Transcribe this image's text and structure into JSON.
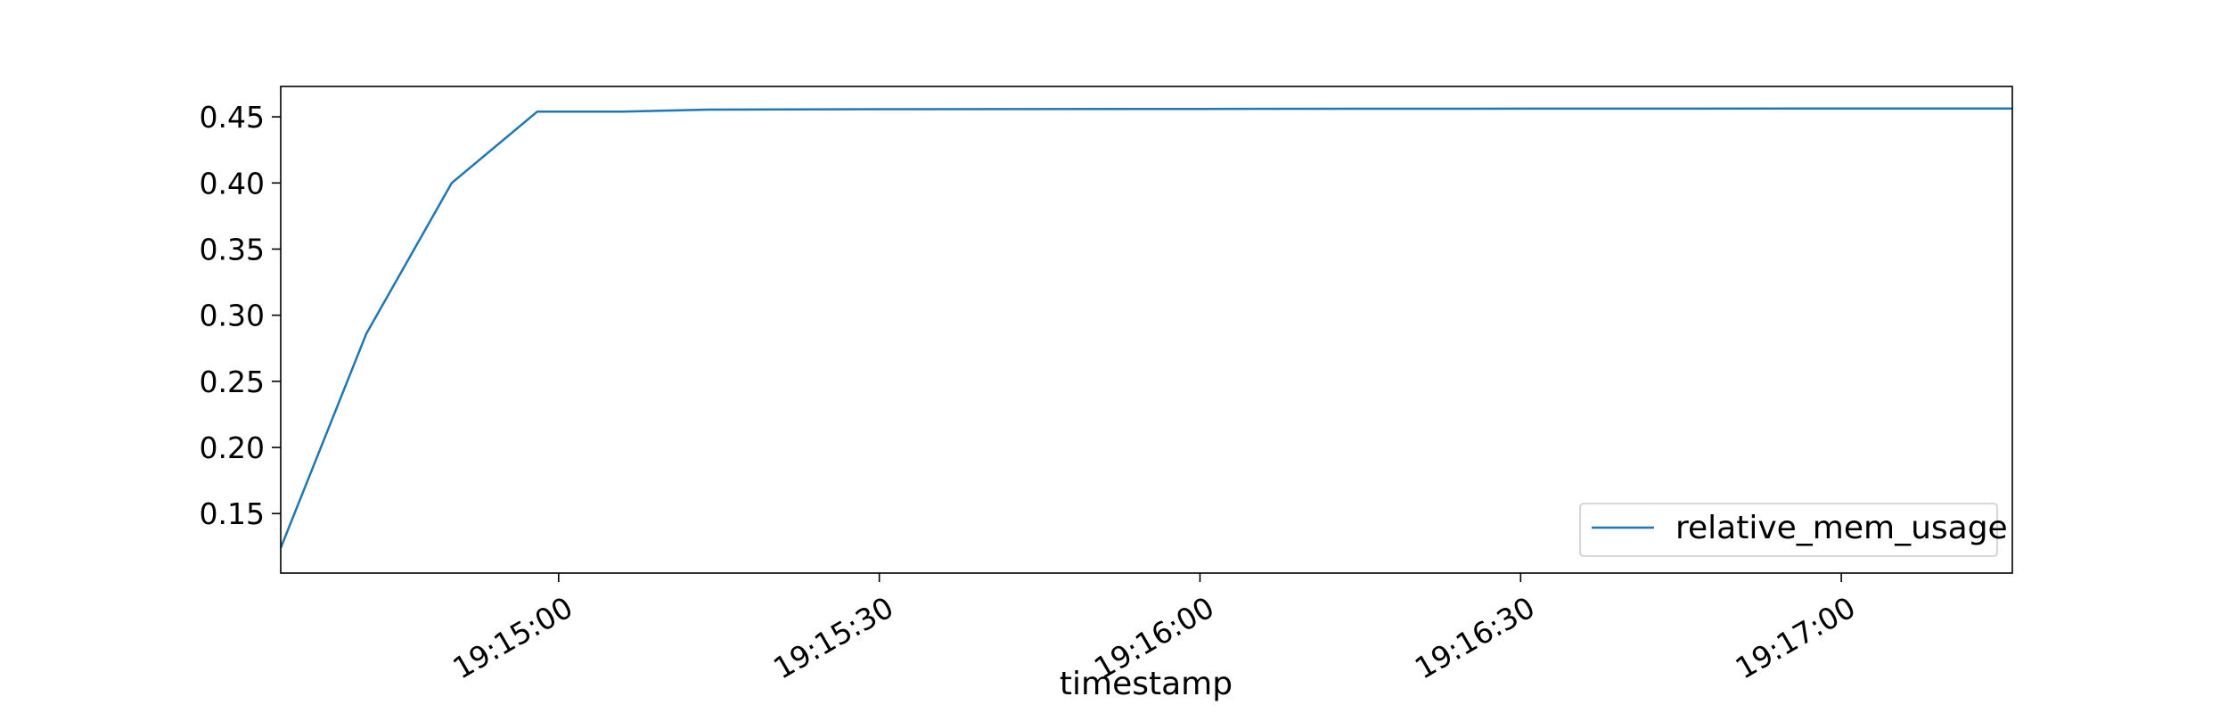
{
  "chart_data": {
    "type": "line",
    "title": "",
    "xlabel": "timestamp",
    "ylabel": "",
    "x": [
      "19:14:34",
      "19:14:42",
      "19:14:50",
      "19:14:58",
      "19:15:06",
      "19:15:14",
      "19:15:30",
      "19:16:00",
      "19:16:30",
      "19:17:00",
      "19:17:16"
    ],
    "series": [
      {
        "name": "relative_mem_usage",
        "color": "#1f77b4",
        "values": [
          0.124,
          0.286,
          0.4,
          0.454,
          0.454,
          0.4555,
          0.4558,
          0.456,
          0.4562,
          0.4563,
          0.4563
        ]
      }
    ],
    "xlim": [
      "19:14:34",
      "19:17:16"
    ],
    "ylim": [
      0.105,
      0.473
    ],
    "xticks": [
      "19:15:00",
      "19:15:30",
      "19:16:00",
      "19:16:30",
      "19:17:00"
    ],
    "yticks": [
      0.15,
      0.2,
      0.25,
      0.3,
      0.35,
      0.4,
      0.45
    ],
    "ytick_labels": [
      "0.15",
      "0.20",
      "0.25",
      "0.30",
      "0.35",
      "0.40",
      "0.45"
    ],
    "grid": false,
    "legend_position": "bottom-right"
  }
}
